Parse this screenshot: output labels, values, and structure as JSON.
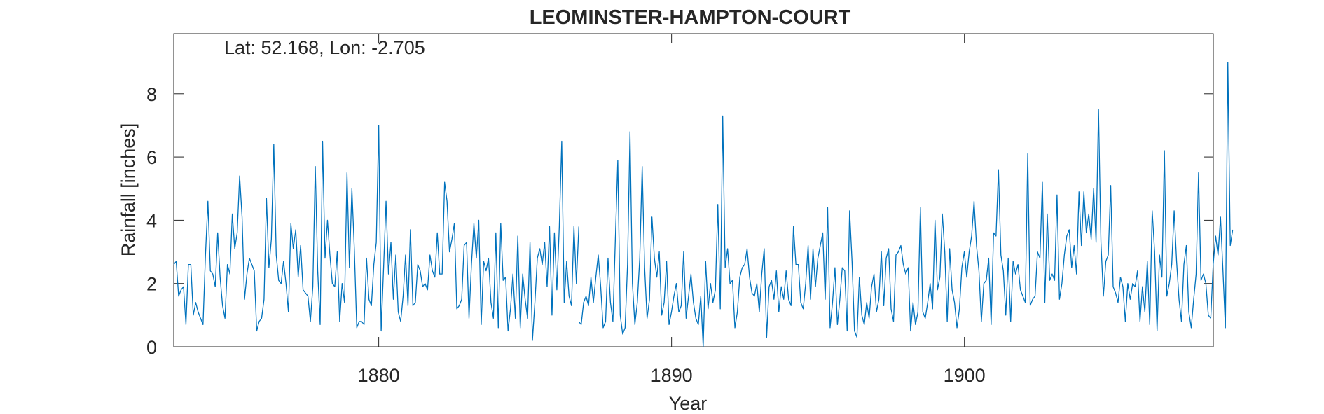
{
  "chart_data": {
    "type": "line",
    "title": "LEOMINSTER-HAMPTON-COURT",
    "annotation": "Lat: 52.168, Lon: -2.705",
    "xlabel": "Year",
    "ylabel": "Rainfall [inches]",
    "xlim": [
      1873,
      1908.5
    ],
    "ylim": [
      0,
      9.9
    ],
    "xticks": [
      1880,
      1890,
      1900
    ],
    "xtick_labels": [
      "1880",
      "1890",
      "1900"
    ],
    "yticks": [
      0,
      2,
      4,
      6,
      8
    ],
    "ytick_labels": [
      "0",
      "2",
      "4",
      "6",
      "8"
    ],
    "grid": false,
    "line_color": "#0072BD",
    "series": [
      {
        "segments": [
          {
            "x_start": 1873.0,
            "x_step": 0.08333,
            "values": [
              2.6,
              2.7,
              1.6,
              1.8,
              1.9,
              0.7,
              2.6,
              2.6,
              1.0,
              1.4,
              1.1,
              0.9,
              0.7,
              2.9,
              4.6,
              2.4,
              2.3,
              1.9,
              3.6,
              2.2,
              1.3,
              0.9,
              2.6,
              2.3,
              4.2,
              3.1,
              3.6,
              5.4,
              4.1,
              1.5,
              2.3,
              2.8,
              2.6,
              2.4,
              0.5,
              0.8,
              0.9,
              1.5,
              4.7,
              2.5,
              3.4,
              6.4,
              2.9,
              2.1,
              2.0,
              2.7,
              2.0,
              1.1,
              3.9,
              3.1,
              3.7,
              2.2,
              3.2,
              1.8,
              1.7,
              1.6,
              0.8,
              1.9,
              5.7,
              2.4,
              0.7,
              6.5,
              2.8,
              4.0,
              2.9,
              2.0,
              1.9,
              3.0,
              0.8,
              2.0,
              1.4,
              5.5,
              2.5,
              5.0,
              3.1,
              0.6,
              0.8,
              0.8,
              0.7,
              2.8,
              1.5,
              1.3,
              2.6,
              3.3,
              7.0,
              0.5,
              2.5,
              4.6,
              2.3,
              3.3,
              1.5,
              2.9,
              1.1,
              0.8,
              1.6,
              2.9,
              1.3,
              3.7,
              1.3,
              1.4,
              2.6,
              2.4,
              1.9,
              2.0,
              1.8,
              2.9,
              2.4,
              2.2,
              3.6,
              2.3,
              2.3,
              5.2,
              4.6,
              3.0,
              3.4,
              3.9,
              1.2,
              1.3,
              1.5,
              3.2,
              3.3,
              0.9,
              2.6,
              3.9,
              2.8,
              4.0,
              0.7,
              2.7,
              2.4,
              2.8,
              1.4,
              0.9,
              3.6,
              0.6,
              3.9,
              2.1,
              2.2,
              0.5,
              1.2,
              2.3,
              0.9,
              3.5,
              0.6,
              2.3,
              1.5,
              0.9,
              3.3,
              0.2,
              1.4,
              2.8,
              3.1,
              2.6,
              3.3,
              1.9,
              3.8,
              1.0,
              3.6,
              1.8,
              3.8,
              6.5,
              1.4,
              2.7,
              1.6,
              1.3,
              3.8,
              2.0,
              3.8
            ]
          },
          {
            "x_start": 1886.83,
            "x_step": 0.08333,
            "values": [
              0.8,
              0.7,
              1.4,
              1.6,
              1.3,
              2.2,
              1.4,
              2.2,
              2.9,
              1.9,
              0.6,
              0.8,
              2.8,
              1.4,
              0.8,
              3.4,
              5.9,
              1.0,
              0.4,
              0.6,
              2.6,
              6.8,
              2.0,
              0.7,
              1.4,
              2.8,
              5.7,
              2.5,
              0.9,
              1.5,
              4.1,
              2.8,
              2.2,
              3.0,
              1.0,
              1.4,
              2.7,
              0.7,
              1.1,
              1.6,
              2.0,
              1.1,
              1.3,
              3.0,
              0.9,
              1.6,
              2.3,
              1.4,
              0.9,
              0.7,
              1.6,
              0.0,
              2.7,
              1.2,
              2.0,
              1.4,
              1.8,
              4.5,
              1.2,
              7.3,
              2.5,
              3.1,
              2.0,
              2.1,
              0.6,
              1.1,
              2.2,
              2.5,
              2.6,
              3.1,
              2.2,
              1.7,
              1.6,
              2.0,
              1.1,
              2.3,
              3.1,
              0.3,
              1.9,
              2.1,
              1.5,
              2.4,
              1.1,
              1.9,
              1.5,
              2.4,
              1.5,
              1.3,
              3.8,
              2.6,
              2.6,
              1.4,
              1.2,
              2.0,
              3.2,
              1.5,
              3.1,
              1.9,
              2.8,
              3.2,
              3.6,
              1.5,
              4.4,
              0.6,
              1.4,
              2.5,
              0.7,
              1.5,
              2.5,
              2.4,
              0.5,
              4.3,
              2.7,
              0.5,
              0.3,
              2.2,
              1.0,
              0.7,
              1.4,
              0.9,
              1.9,
              2.3,
              1.1,
              1.5,
              3.0,
              1.3,
              2.8,
              3.1,
              1.2,
              0.8,
              2.9,
              3.0,
              3.2,
              2.6,
              2.3,
              2.5,
              0.5,
              1.4,
              0.7,
              1.1,
              4.4,
              1.1,
              0.9,
              1.4,
              2.0,
              1.2,
              4.0,
              1.8,
              2.2,
              4.2,
              3.0,
              0.8,
              3.1,
              1.8,
              1.4,
              0.6,
              1.2,
              2.5,
              3.0,
              2.2,
              3.0,
              3.5,
              4.6,
              3.2,
              2.4,
              0.8,
              2.0,
              2.1,
              2.8,
              0.7,
              3.6,
              3.5,
              5.6,
              2.9,
              2.4,
              1.0,
              2.8,
              0.8,
              2.7,
              2.3,
              2.6,
              1.8,
              1.6,
              1.4,
              6.1,
              1.3,
              1.5,
              1.6,
              3.0,
              2.8,
              5.2,
              1.4,
              4.2,
              2.1,
              2.3,
              2.1,
              4.8,
              1.5,
              2.0,
              2.9,
              3.5,
              3.7,
              2.5,
              3.2,
              2.3,
              4.9,
              3.2,
              4.9,
              3.6,
              4.2,
              3.4,
              5.0,
              3.3,
              7.5,
              3.3,
              1.6,
              2.7,
              2.9,
              5.1,
              1.9,
              1.7,
              1.4,
              2.2,
              1.9,
              0.8,
              2.0,
              1.5,
              2.0,
              1.9,
              2.4,
              0.8,
              1.9,
              1.1,
              2.7,
              0.7,
              4.3,
              3.0,
              0.5,
              2.9,
              2.2,
              6.2,
              1.6,
              2.0,
              2.6,
              4.3,
              2.7,
              1.5,
              0.8,
              2.6,
              3.2,
              1.1,
              0.6,
              1.5,
              2.3,
              5.5,
              2.1,
              2.3,
              2.0,
              1.0,
              0.9,
              2.6,
              3.5,
              2.9,
              4.1,
              2.4,
              0.6,
              9.0,
              3.2,
              3.7
            ]
          }
        ]
      }
    ]
  }
}
